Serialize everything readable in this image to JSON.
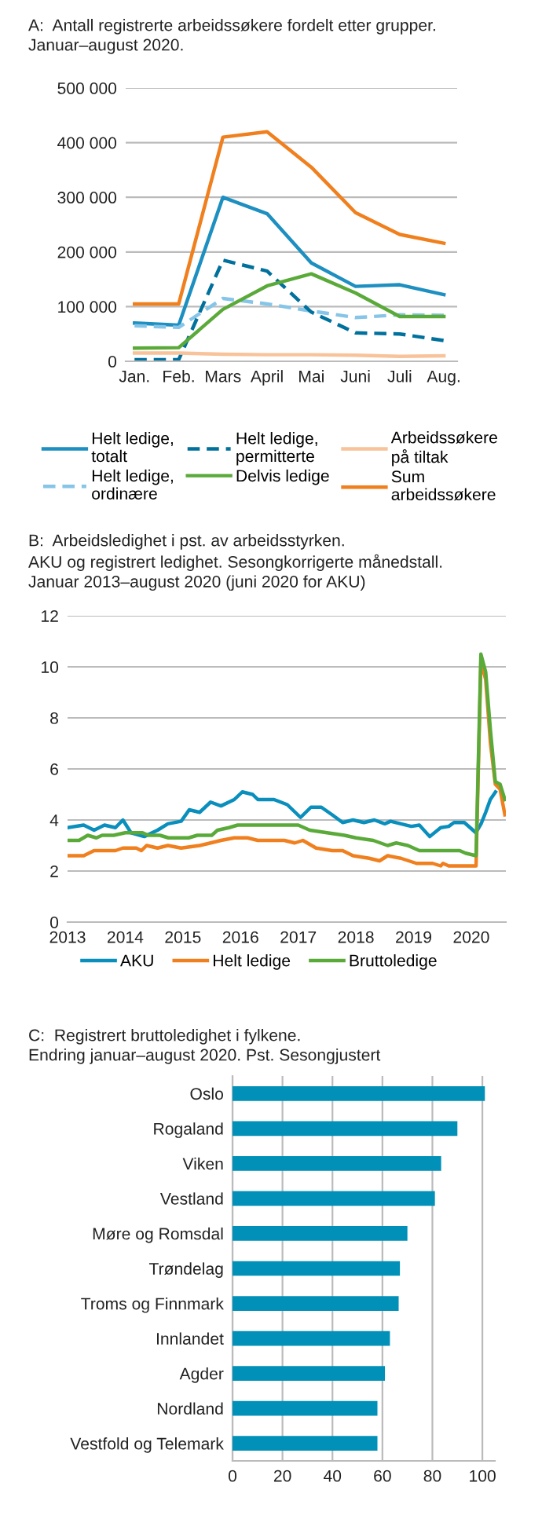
{
  "chart_data": [
    {
      "type": "line",
      "title": "A:  Antall registrerte arbeidssøkere fordelt etter grupper.",
      "subtitle": "Januar–august 2020.",
      "categories": [
        "Jan.",
        "Feb.",
        "Mars",
        "April",
        "Mai",
        "Juni",
        "Juli",
        "Aug."
      ],
      "ylim": [
        0,
        500000
      ],
      "yticks": [
        {
          "value": 0,
          "label": "0"
        },
        {
          "value": 100000,
          "label": "100 000"
        },
        {
          "value": 200000,
          "label": "200 000"
        },
        {
          "value": 300000,
          "label": "300 000"
        },
        {
          "value": 400000,
          "label": "400 000"
        },
        {
          "value": 500000,
          "label": "500 000"
        }
      ],
      "grid": "y",
      "legend": "bottom",
      "series": [
        {
          "name": "Helt ledige, totalt",
          "color": "#1d8fc0",
          "values": [
            70000,
            66000,
            300000,
            270000,
            180000,
            137000,
            140000,
            122000
          ]
        },
        {
          "name": "Helt ledige, ordinære",
          "color": "#86c5e8",
          "line_style": "dashed",
          "values": [
            65000,
            62000,
            115000,
            105000,
            92000,
            80000,
            85000,
            84000
          ]
        },
        {
          "name": "Helt ledige, permitterte",
          "color": "#00709c",
          "line_style": "dashed",
          "values": [
            3000,
            3000,
            185000,
            165000,
            90000,
            52000,
            50000,
            38000
          ]
        },
        {
          "name": "Delvis ledige",
          "color": "#5aaa3a",
          "values": [
            24000,
            25000,
            95000,
            138000,
            160000,
            125000,
            82000,
            82000
          ]
        },
        {
          "name": "Arbeidssøkere på tiltak",
          "color": "#f8c39a",
          "values": [
            15000,
            15000,
            13000,
            12000,
            12000,
            11000,
            9000,
            10000
          ]
        },
        {
          "name": "Sum arbeidssøkere",
          "color": "#f07f1e",
          "values": [
            105000,
            105000,
            410000,
            420000,
            355000,
            272000,
            232000,
            216000
          ]
        }
      ]
    },
    {
      "type": "line",
      "title": "B:  Arbeidsledighet i pst. av arbeidsstyrken.",
      "subtitle": "AKU og registrert ledighet. Sesongkorrigerte månedstall.\nJanuar 2013–august 2020 (juni 2020 for AKU)",
      "xlim": [
        2013,
        2020.6
      ],
      "xticks": [
        2013,
        2014,
        2015,
        2016,
        2017,
        2018,
        2019,
        2020
      ],
      "ylim": [
        0,
        12
      ],
      "yticks": [
        0,
        2,
        4,
        6,
        8,
        10,
        12
      ],
      "grid": "y",
      "legend": "bottom",
      "series": [
        {
          "name": "AKU",
          "color": "#0a8fbd",
          "x": [
            2013.0,
            2013.28,
            2013.46,
            2013.64,
            2013.83,
            2013.96,
            2014.1,
            2014.33,
            2014.56,
            2014.74,
            2014.97,
            2015.11,
            2015.29,
            2015.48,
            2015.66,
            2015.89,
            2016.03,
            2016.21,
            2016.3,
            2016.58,
            2016.81,
            2017.04,
            2017.22,
            2017.4,
            2017.59,
            2017.77,
            2017.95,
            2018.14,
            2018.32,
            2018.5,
            2018.6,
            2018.78,
            2018.96,
            2019.1,
            2019.28,
            2019.47,
            2019.61,
            2019.7,
            2019.88,
            2020.08,
            2020.17,
            2020.25,
            2020.33,
            2020.42
          ],
          "values": [
            3.7,
            3.8,
            3.6,
            3.8,
            3.7,
            4.0,
            3.5,
            3.35,
            3.6,
            3.85,
            3.95,
            4.4,
            4.3,
            4.7,
            4.55,
            4.8,
            5.1,
            5.0,
            4.8,
            4.8,
            4.6,
            4.1,
            4.5,
            4.5,
            4.2,
            3.9,
            4.0,
            3.9,
            4.0,
            3.85,
            3.95,
            3.85,
            3.75,
            3.8,
            3.35,
            3.7,
            3.75,
            3.9,
            3.9,
            3.5,
            3.85,
            4.3,
            4.8,
            5.1
          ]
        },
        {
          "name": "Helt ledige",
          "color": "#f07f1e",
          "x": [
            2013.0,
            2013.28,
            2013.46,
            2013.83,
            2013.96,
            2014.19,
            2014.28,
            2014.37,
            2014.56,
            2014.74,
            2014.97,
            2015.29,
            2015.48,
            2015.66,
            2015.89,
            2016.12,
            2016.3,
            2016.76,
            2016.94,
            2017.08,
            2017.31,
            2017.59,
            2017.77,
            2017.95,
            2018.23,
            2018.41,
            2018.55,
            2018.78,
            2019.05,
            2019.33,
            2019.47,
            2019.51,
            2019.61,
            2020.083,
            2020.167,
            2020.25,
            2020.333,
            2020.417,
            2020.5,
            2020.583
          ],
          "values": [
            2.6,
            2.6,
            2.8,
            2.8,
            2.9,
            2.9,
            2.8,
            3.0,
            2.9,
            3.0,
            2.9,
            3.0,
            3.1,
            3.2,
            3.3,
            3.3,
            3.2,
            3.2,
            3.1,
            3.2,
            2.9,
            2.8,
            2.8,
            2.6,
            2.5,
            2.4,
            2.6,
            2.5,
            2.3,
            2.3,
            2.2,
            2.3,
            2.2,
            2.2,
            10.2,
            9.5,
            7.0,
            5.4,
            5.2,
            4.2
          ]
        },
        {
          "name": "Bruttoledige",
          "color": "#5aaa3a",
          "x": [
            2013.0,
            2013.2,
            2013.35,
            2013.5,
            2013.6,
            2013.8,
            2014.0,
            2014.3,
            2014.4,
            2014.6,
            2014.75,
            2015.1,
            2015.25,
            2015.5,
            2015.6,
            2015.8,
            2015.95,
            2016.8,
            2017.0,
            2017.2,
            2017.5,
            2017.8,
            2018.0,
            2018.3,
            2018.55,
            2018.7,
            2018.9,
            2019.1,
            2019.8,
            2019.9,
            2020.083,
            2020.167,
            2020.25,
            2020.333,
            2020.417,
            2020.5,
            2020.583
          ],
          "values": [
            3.2,
            3.2,
            3.4,
            3.3,
            3.4,
            3.4,
            3.5,
            3.5,
            3.4,
            3.4,
            3.3,
            3.3,
            3.4,
            3.4,
            3.6,
            3.7,
            3.8,
            3.8,
            3.8,
            3.6,
            3.5,
            3.4,
            3.3,
            3.2,
            3.0,
            3.1,
            3.0,
            2.8,
            2.8,
            2.7,
            2.6,
            10.5,
            9.8,
            7.5,
            5.5,
            5.4,
            4.8
          ]
        }
      ]
    },
    {
      "type": "bar",
      "orientation": "horizontal",
      "title": "C:  Registrert bruttoledighet i fylkene.",
      "subtitle": "Endring januar–august 2020. Pst. Sesongjustert",
      "categories": [
        "Oslo",
        "Rogaland",
        "Viken",
        "Vestland",
        "Møre og Romsdal",
        "Trøndelag",
        "Troms og Finnmark",
        "Innlandet",
        "Agder",
        "Nordland",
        "Vestfold og Telemark"
      ],
      "values": [
        101,
        90,
        83.5,
        81,
        70,
        67,
        66.5,
        63,
        61,
        58,
        58
      ],
      "color": "#0090b8",
      "xlim": [
        0,
        105
      ],
      "xticks": [
        0,
        20,
        40,
        60,
        80,
        100
      ],
      "grid": "x"
    }
  ]
}
